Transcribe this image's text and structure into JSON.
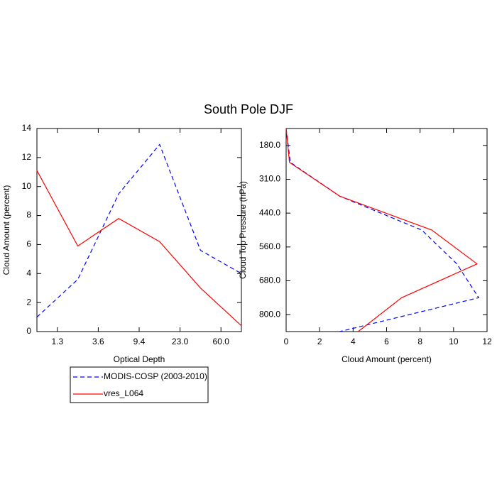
{
  "title": "South Pole DJF",
  "chart_data": [
    {
      "type": "line",
      "x_label": "Optical Depth",
      "y_label": "Cloud Amount (percent)",
      "x": [
        0,
        1,
        2,
        3,
        4,
        5
      ],
      "xlim": [
        0,
        5
      ],
      "xticks": [
        {
          "value": 0.5,
          "label": "1.3"
        },
        {
          "value": 1.5,
          "label": "3.6"
        },
        {
          "value": 2.5,
          "label": "9.4"
        },
        {
          "value": 3.5,
          "label": "23.0"
        },
        {
          "value": 4.5,
          "label": "60.0"
        }
      ],
      "ylim": [
        0,
        14
      ],
      "yticks": [
        0,
        2,
        4,
        6,
        8,
        10,
        12,
        14
      ],
      "series": [
        {
          "name": "MODIS-COSP (2003-2010)",
          "color": "#0000ff",
          "dashed": true,
          "values": [
            1.0,
            3.6,
            9.5,
            12.9,
            5.6,
            4.0
          ]
        },
        {
          "name": "vres_L064",
          "color": "#ff0000",
          "dashed": false,
          "values": [
            11.1,
            5.9,
            7.8,
            6.2,
            3.0,
            0.4
          ]
        }
      ]
    },
    {
      "type": "line",
      "orientation": "horizontal",
      "x_label": "Cloud Amount (percent)",
      "y_label": "Cloud Top Pressure (hPa)",
      "xlim": [
        0,
        12
      ],
      "xticks": [
        0,
        2,
        4,
        6,
        8,
        10,
        12
      ],
      "y": [
        0,
        1,
        2,
        3,
        4,
        5,
        6
      ],
      "ylim": [
        6,
        0
      ],
      "yticks": [
        {
          "value": 0.5,
          "label": "180.0"
        },
        {
          "value": 1.5,
          "label": "310.0"
        },
        {
          "value": 2.5,
          "label": "440.0"
        },
        {
          "value": 3.5,
          "label": "560.0"
        },
        {
          "value": 4.5,
          "label": "680.0"
        },
        {
          "value": 5.5,
          "label": "800.0"
        }
      ],
      "series": [
        {
          "color": "#0000ff",
          "dashed": true,
          "values": [
            0,
            0.25,
            3.2,
            8.1,
            10.2,
            11.5,
            3.2
          ]
        },
        {
          "color": "#ff0000",
          "dashed": false,
          "values": [
            0,
            0.2,
            3.2,
            8.7,
            11.4,
            6.9,
            4.3
          ]
        }
      ]
    }
  ]
}
